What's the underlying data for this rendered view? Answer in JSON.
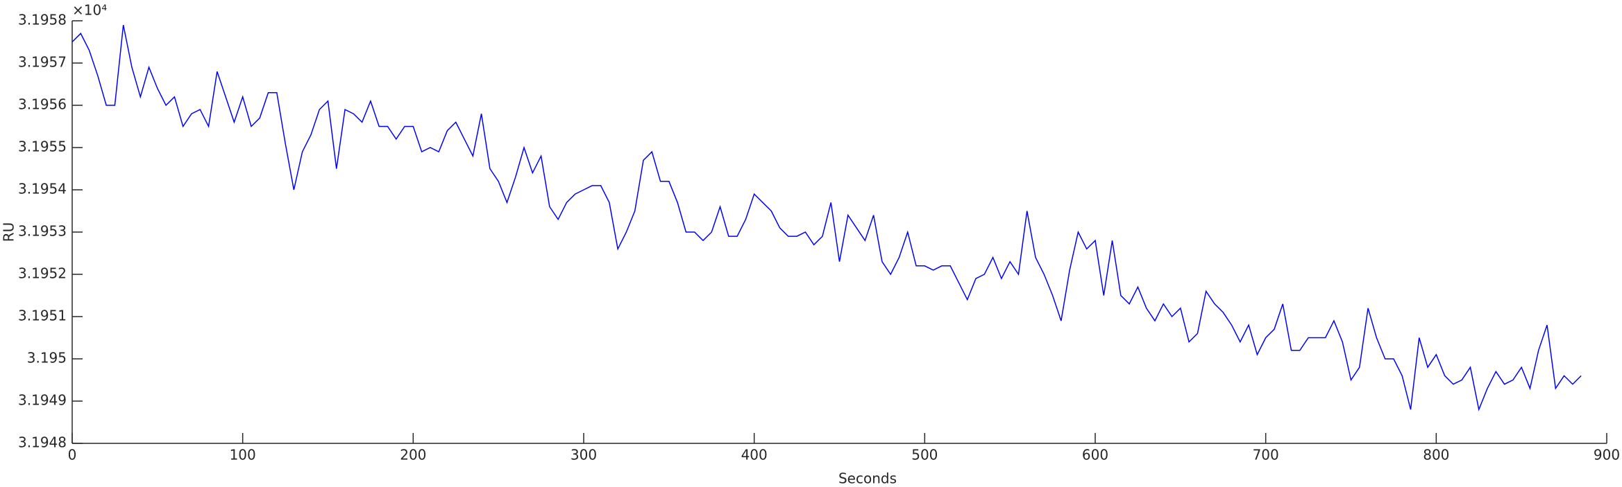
{
  "chart_data": {
    "type": "line",
    "x_label": "Seconds",
    "y_label": "RU",
    "y_multiplier": "×10⁴",
    "xlim": [
      0,
      900
    ],
    "xticks": [
      0,
      100,
      200,
      300,
      400,
      500,
      600,
      700,
      800,
      900
    ],
    "ylim": [
      3.1948,
      3.1958
    ],
    "yticks": [
      3.1948,
      3.1949,
      3.195,
      3.1951,
      3.1952,
      3.1953,
      3.1954,
      3.1955,
      3.1956,
      3.1957,
      3.1958
    ],
    "grid": false,
    "x": [
      0,
      5,
      10,
      15,
      20,
      25,
      30,
      35,
      40,
      45,
      50,
      55,
      60,
      65,
      70,
      75,
      80,
      85,
      90,
      95,
      100,
      105,
      110,
      115,
      120,
      125,
      130,
      135,
      140,
      145,
      150,
      155,
      160,
      165,
      170,
      175,
      180,
      185,
      190,
      195,
      200,
      205,
      210,
      215,
      220,
      225,
      230,
      235,
      240,
      245,
      250,
      255,
      260,
      265,
      270,
      275,
      280,
      285,
      290,
      295,
      300,
      305,
      310,
      315,
      320,
      325,
      330,
      335,
      340,
      345,
      350,
      355,
      360,
      365,
      370,
      375,
      380,
      385,
      390,
      395,
      400,
      405,
      410,
      415,
      420,
      425,
      430,
      435,
      440,
      445,
      450,
      455,
      460,
      465,
      470,
      475,
      480,
      485,
      490,
      495,
      500,
      505,
      510,
      515,
      520,
      525,
      530,
      535,
      540,
      545,
      550,
      555,
      560,
      565,
      570,
      575,
      580,
      585,
      590,
      595,
      600,
      605,
      610,
      615,
      620,
      625,
      630,
      635,
      640,
      645,
      650,
      655,
      660,
      665,
      670,
      675,
      680,
      685,
      690,
      695,
      700,
      705,
      710,
      715,
      720,
      725,
      730,
      735,
      740,
      745,
      750,
      755,
      760,
      765,
      770,
      775,
      780,
      785,
      790,
      795,
      800,
      805,
      810,
      815,
      820,
      825,
      830,
      835,
      840,
      845,
      850,
      855,
      860,
      865,
      870,
      875,
      880,
      885
    ],
    "series": [
      {
        "name": "RU",
        "color": "#0000ff",
        "values": [
          3.19575,
          3.19577,
          3.19573,
          3.19567,
          3.1956,
          3.1956,
          3.19579,
          3.19569,
          3.19562,
          3.19569,
          3.19564,
          3.1956,
          3.19562,
          3.19555,
          3.19558,
          3.19559,
          3.19555,
          3.19568,
          3.19562,
          3.19556,
          3.19562,
          3.19555,
          3.19557,
          3.19563,
          3.19563,
          3.19551,
          3.1954,
          3.19549,
          3.19553,
          3.19559,
          3.19561,
          3.19545,
          3.19559,
          3.19558,
          3.19556,
          3.19561,
          3.19555,
          3.19555,
          3.19552,
          3.19555,
          3.19555,
          3.19549,
          3.1955,
          3.19549,
          3.19554,
          3.19556,
          3.19552,
          3.19548,
          3.19558,
          3.19545,
          3.19542,
          3.19537,
          3.19543,
          3.1955,
          3.19544,
          3.19548,
          3.19536,
          3.19533,
          3.19537,
          3.19539,
          3.1954,
          3.19541,
          3.19541,
          3.19537,
          3.19526,
          3.1953,
          3.19535,
          3.19547,
          3.19549,
          3.19542,
          3.19542,
          3.19537,
          3.1953,
          3.1953,
          3.19528,
          3.1953,
          3.19536,
          3.19529,
          3.19529,
          3.19533,
          3.19539,
          3.19537,
          3.19535,
          3.19531,
          3.19529,
          3.19529,
          3.1953,
          3.19527,
          3.19529,
          3.19537,
          3.19523,
          3.19534,
          3.19531,
          3.19528,
          3.19534,
          3.19523,
          3.1952,
          3.19524,
          3.1953,
          3.19522,
          3.19522,
          3.19521,
          3.19522,
          3.19522,
          3.19518,
          3.19514,
          3.19519,
          3.1952,
          3.19524,
          3.19519,
          3.19523,
          3.1952,
          3.19535,
          3.19524,
          3.1952,
          3.19515,
          3.19509,
          3.19521,
          3.1953,
          3.19526,
          3.19528,
          3.19515,
          3.19528,
          3.19515,
          3.19513,
          3.19517,
          3.19512,
          3.19509,
          3.19513,
          3.1951,
          3.19512,
          3.19504,
          3.19506,
          3.19516,
          3.19513,
          3.19511,
          3.19508,
          3.19504,
          3.19508,
          3.19501,
          3.19505,
          3.19507,
          3.19513,
          3.19502,
          3.19502,
          3.19505,
          3.19505,
          3.19505,
          3.19509,
          3.19504,
          3.19495,
          3.19498,
          3.19512,
          3.19505,
          3.195,
          3.195,
          3.19496,
          3.19488,
          3.19505,
          3.19498,
          3.19501,
          3.19496,
          3.19494,
          3.19495,
          3.19498,
          3.19488,
          3.19493,
          3.19497,
          3.19494,
          3.19495,
          3.19498,
          3.19493,
          3.19502,
          3.19508,
          3.19493,
          3.19496,
          3.19494,
          3.19496
        ]
      }
    ]
  }
}
